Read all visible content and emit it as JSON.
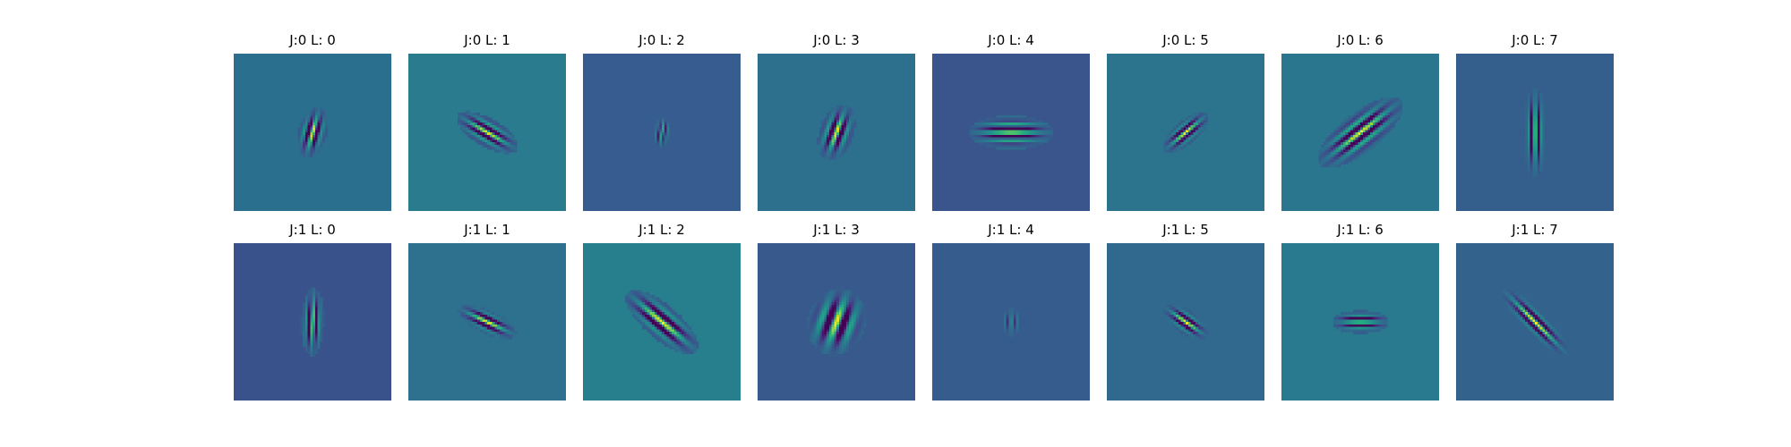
{
  "chart_data": {
    "type": "heatmap",
    "colormap": "viridis",
    "grid_rows": 2,
    "grid_cols": 8,
    "axes_visible": false,
    "panels": [
      {
        "title": "J:0 L: 0",
        "j": 0,
        "l": 0,
        "background": "#2b6f8e",
        "angle_deg": 75,
        "extent": 9,
        "width": 5,
        "freq": 0.55
      },
      {
        "title": "J:0 L: 1",
        "j": 0,
        "l": 1,
        "background": "#2a7b8d",
        "angle_deg": -30,
        "extent": 12,
        "width": 5,
        "freq": 0.6
      },
      {
        "title": "J:0 L: 2",
        "j": 0,
        "l": 2,
        "background": "#375d90",
        "angle_deg": 85,
        "extent": 5,
        "width": 3,
        "freq": 0.9
      },
      {
        "title": "J:0 L: 3",
        "j": 0,
        "l": 3,
        "background": "#2c708e",
        "angle_deg": 70,
        "extent": 10,
        "width": 6,
        "freq": 0.5
      },
      {
        "title": "J:0 L: 4",
        "j": 0,
        "l": 4,
        "background": "#39558c",
        "angle_deg": 0,
        "extent": 15,
        "width": 6,
        "freq": 0.6
      },
      {
        "title": "J:0 L: 5",
        "j": 0,
        "l": 5,
        "background": "#2c738e",
        "angle_deg": 40,
        "extent": 10,
        "width": 4,
        "freq": 0.65
      },
      {
        "title": "J:0 L: 6",
        "j": 0,
        "l": 6,
        "background": "#2a768e",
        "angle_deg": 38,
        "extent": 18,
        "width": 7,
        "freq": 0.5
      },
      {
        "title": "J:0 L: 7",
        "j": 0,
        "l": 7,
        "background": "#345f8d",
        "angle_deg": 90,
        "extent": 16,
        "width": 4,
        "freq": 0.7
      },
      {
        "title": "J:1 L: 0",
        "j": 1,
        "l": 0,
        "background": "#3a528b",
        "angle_deg": 88,
        "extent": 12,
        "width": 4,
        "freq": 0.7
      },
      {
        "title": "J:1 L: 1",
        "j": 1,
        "l": 1,
        "background": "#2d718e",
        "angle_deg": -25,
        "extent": 11,
        "width": 4,
        "freq": 0.6
      },
      {
        "title": "J:1 L: 2",
        "j": 1,
        "l": 2,
        "background": "#277f8e",
        "angle_deg": -40,
        "extent": 16,
        "width": 6,
        "freq": 0.45
      },
      {
        "title": "J:1 L: 3",
        "j": 1,
        "l": 3,
        "background": "#38598c",
        "angle_deg": 70,
        "extent": 12,
        "width": 10,
        "freq": 0.32
      },
      {
        "title": "J:1 L: 4",
        "j": 1,
        "l": 4,
        "background": "#365c8d",
        "angle_deg": 90,
        "extent": 5,
        "width": 3,
        "freq": 0.9
      },
      {
        "title": "J:1 L: 5",
        "j": 1,
        "l": 5,
        "background": "#30688e",
        "angle_deg": -35,
        "extent": 9,
        "width": 4,
        "freq": 0.65
      },
      {
        "title": "J:1 L: 6",
        "j": 1,
        "l": 6,
        "background": "#297a8e",
        "angle_deg": 0,
        "extent": 10,
        "width": 4,
        "freq": 0.7
      },
      {
        "title": "J:1 L: 7",
        "j": 1,
        "l": 7,
        "background": "#33638d",
        "angle_deg": -45,
        "extent": 16,
        "width": 4,
        "freq": 0.6
      }
    ]
  }
}
